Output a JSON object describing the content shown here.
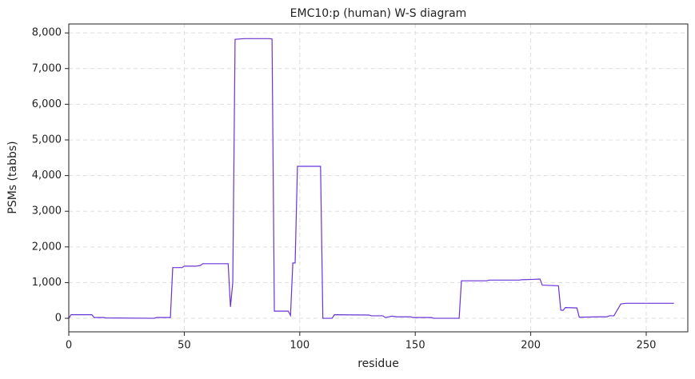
{
  "chart_data": {
    "type": "line",
    "title": "EMC10:p (human) W-S diagram",
    "xlabel": "residue",
    "ylabel": "PSMs (tabbs)",
    "color": "#6a33d6",
    "grid": true,
    "x": [
      0,
      1,
      10,
      11,
      15,
      16,
      37,
      38,
      44,
      45,
      49,
      50,
      55,
      57,
      58,
      69,
      70,
      71,
      72,
      76,
      87,
      88,
      89,
      95,
      96,
      97,
      98,
      99,
      109,
      110,
      114,
      115,
      130,
      131,
      136,
      137,
      140,
      142,
      148,
      149,
      157,
      158,
      169,
      170,
      181,
      182,
      195,
      196,
      201,
      204,
      205,
      212,
      213,
      214,
      215,
      220,
      221,
      230,
      233,
      234,
      236,
      239,
      241,
      262
    ],
    "values": [
      0,
      100,
      100,
      20,
      20,
      10,
      0,
      20,
      20,
      1420,
      1420,
      1460,
      1460,
      1480,
      1530,
      1530,
      320,
      1000,
      7820,
      7840,
      7840,
      7830,
      200,
      200,
      80,
      1550,
      1550,
      4260,
      4260,
      0,
      0,
      100,
      90,
      70,
      70,
      20,
      60,
      40,
      40,
      20,
      20,
      0,
      0,
      1050,
      1050,
      1070,
      1070,
      1080,
      1090,
      1100,
      930,
      910,
      230,
      220,
      300,
      290,
      30,
      40,
      40,
      70,
      70,
      400,
      420,
      420
    ],
    "xlim": [
      0,
      268
    ],
    "ylim": [
      -380,
      8250
    ],
    "xticks": [
      0,
      50,
      100,
      150,
      200,
      250
    ],
    "yticks": [
      0,
      {
        "value": 1000,
        "label": "1,000"
      },
      {
        "value": 2000,
        "label": "2,000"
      },
      {
        "value": 3000,
        "label": "3,000"
      },
      {
        "value": 4000,
        "label": "4,000"
      },
      {
        "value": 5000,
        "label": "5,000"
      },
      {
        "value": 6000,
        "label": "6,000"
      },
      {
        "value": 7000,
        "label": "7,000"
      },
      {
        "value": 8000,
        "label": "8,000"
      }
    ]
  }
}
